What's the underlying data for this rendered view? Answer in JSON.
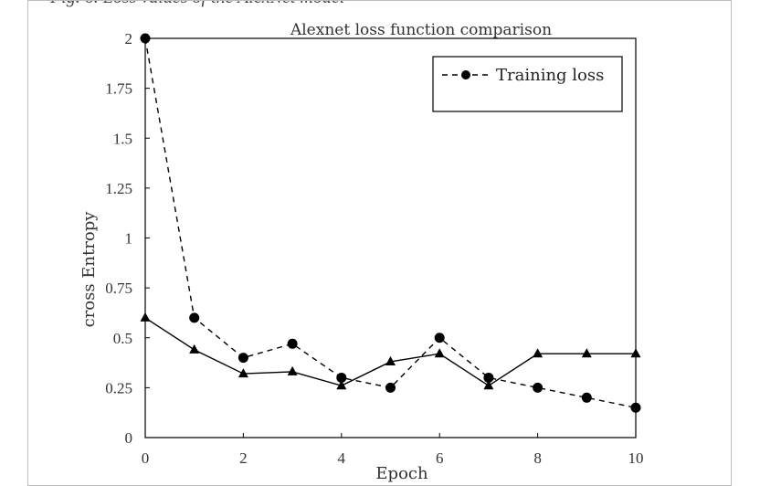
{
  "chart_data": {
    "type": "line",
    "title": "Alexnet loss function comparison",
    "xlabel": "Epoch",
    "ylabel": "cross Entropy",
    "x": [
      0,
      1,
      2,
      3,
      4,
      5,
      6,
      7,
      8,
      9,
      10
    ],
    "xlim": [
      0,
      10
    ],
    "ylim": [
      0,
      2
    ],
    "xticks": [
      "0",
      "2",
      "4",
      "6",
      "8",
      "10"
    ],
    "yticks": [
      "0",
      "0.25",
      "0.5",
      "0.75",
      "1",
      "1.25",
      "1.5",
      "1.75",
      "2"
    ],
    "grid": false,
    "legend_position": "top-right",
    "series": [
      {
        "name": "Training loss",
        "style": "dashed",
        "marker": "circle",
        "values": [
          2.0,
          0.6,
          0.4,
          0.47,
          0.3,
          0.25,
          0.5,
          0.3,
          0.25,
          0.2,
          0.15
        ]
      },
      {
        "style": "solid",
        "marker": "triangle",
        "values": [
          0.6,
          0.44,
          0.32,
          0.33,
          0.26,
          0.38,
          0.42,
          0.26,
          0.42,
          0.42,
          0.42
        ]
      }
    ],
    "colors": {
      "line": "#000000",
      "text": "#333333"
    }
  }
}
